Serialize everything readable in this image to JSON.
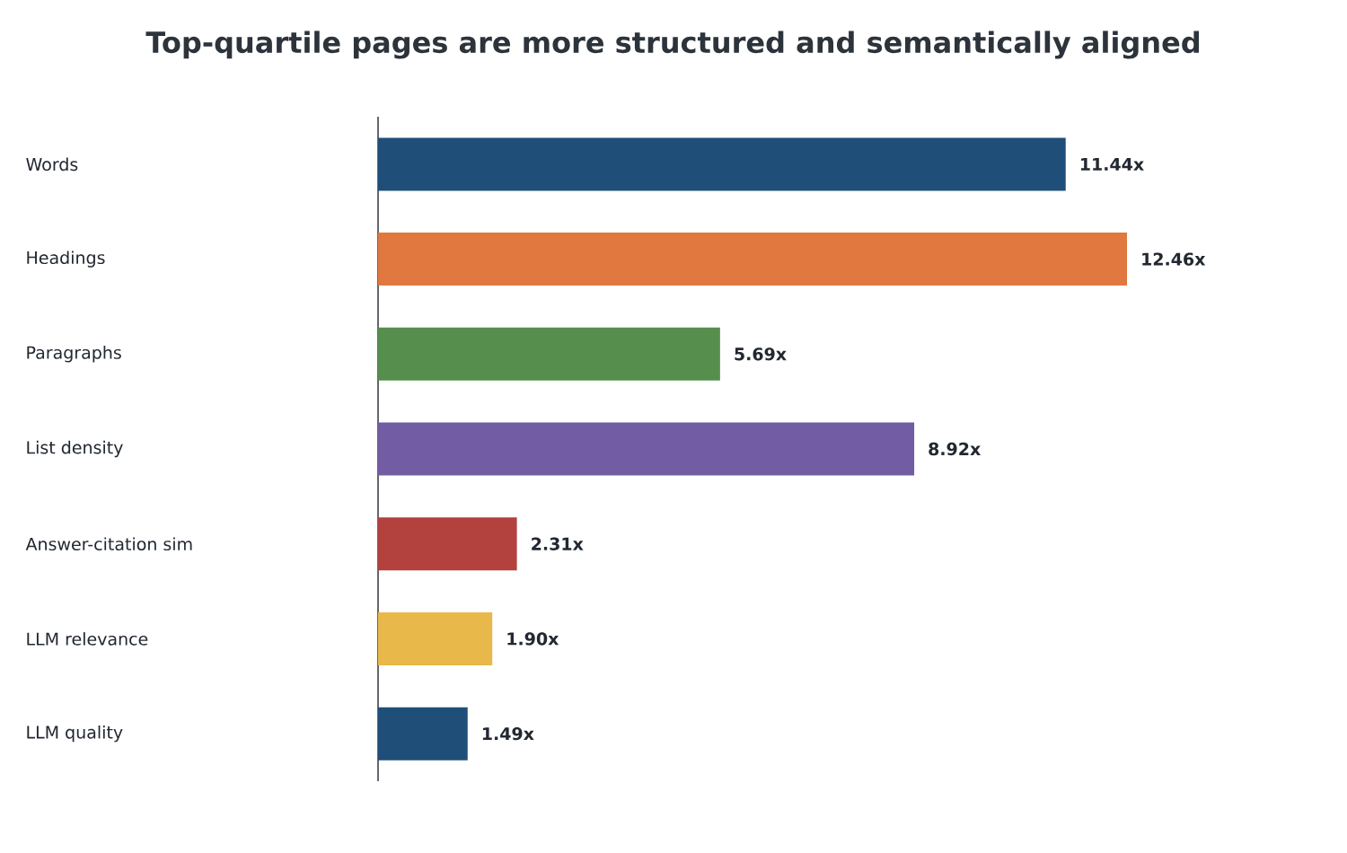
{
  "chart_data": {
    "type": "bar",
    "orientation": "horizontal",
    "title": "Top-quartile pages are more structured and semantically aligned",
    "categories": [
      "Words",
      "Headings",
      "Paragraphs",
      "List density",
      "Answer-citation sim",
      "LLM relevance",
      "LLM quality"
    ],
    "values": [
      11.44,
      12.46,
      5.69,
      8.92,
      2.31,
      1.9,
      1.49
    ],
    "value_labels": [
      "11.44x",
      "12.46x",
      "5.69x",
      "8.92x",
      "2.31x",
      "1.90x",
      "1.49x"
    ],
    "colors": [
      "#1f4e79",
      "#e07840",
      "#568e4d",
      "#725ca3",
      "#b3413e",
      "#e8b84a",
      "#1f4e79"
    ]
  }
}
